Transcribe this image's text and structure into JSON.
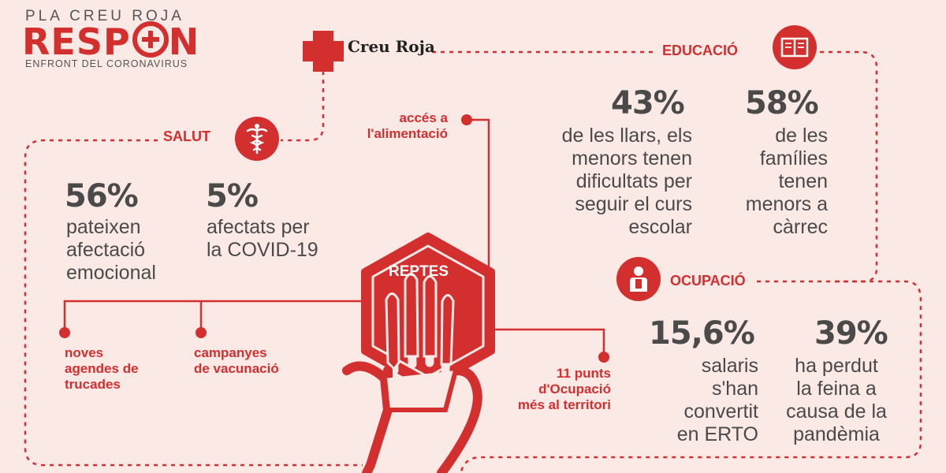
{
  "header": {
    "pla": "PLA CREU ROJA",
    "respon_prefix": "RESP",
    "respon_suffix": "N",
    "tagline": "ENFRONT DEL CORONAVIRUS"
  },
  "brand": {
    "name": "Creu Roja"
  },
  "center": {
    "label": "REPTES"
  },
  "salut": {
    "title": "SALUT",
    "icon": "caduceus-icon",
    "stats": [
      {
        "value": "56%",
        "text": [
          "pateixen",
          "afectació",
          "emocional"
        ]
      },
      {
        "value": "5%",
        "text": [
          "afectats per",
          "la COVID-19"
        ]
      }
    ],
    "actions": [
      [
        "noves",
        "agendes de",
        "trucades"
      ],
      [
        "campanyes",
        "de vacunació"
      ]
    ]
  },
  "alimentacio": {
    "text": [
      "accés a",
      "l'alimentació"
    ]
  },
  "educacio": {
    "title": "EDUCACIÓ",
    "icon": "book-icon",
    "stats": [
      {
        "value": "43%",
        "text": [
          "de les llars, els",
          "menors tenen",
          "dificultats per",
          "seguir el curs",
          "escolar"
        ]
      },
      {
        "value": "58%",
        "text": [
          "de les",
          "famílies",
          "tenen",
          "menors a",
          "càrrec"
        ]
      }
    ]
  },
  "ocupacio": {
    "title": "OCUPACIÓ",
    "icon": "worker-icon",
    "stats": [
      {
        "value": "15,6%",
        "text": [
          "salaris",
          "s'han",
          "convertit",
          "en ERTO"
        ]
      },
      {
        "value": "39%",
        "text": [
          "ha perdut",
          "la feina a",
          "causa de la",
          "pandèmia"
        ]
      }
    ],
    "punts": [
      "11 punts",
      "d'Ocupació",
      "més al territori"
    ]
  },
  "colors": {
    "accent": "#d32f2f",
    "background": "#fbe9e6",
    "text": "#4a4a4a"
  }
}
